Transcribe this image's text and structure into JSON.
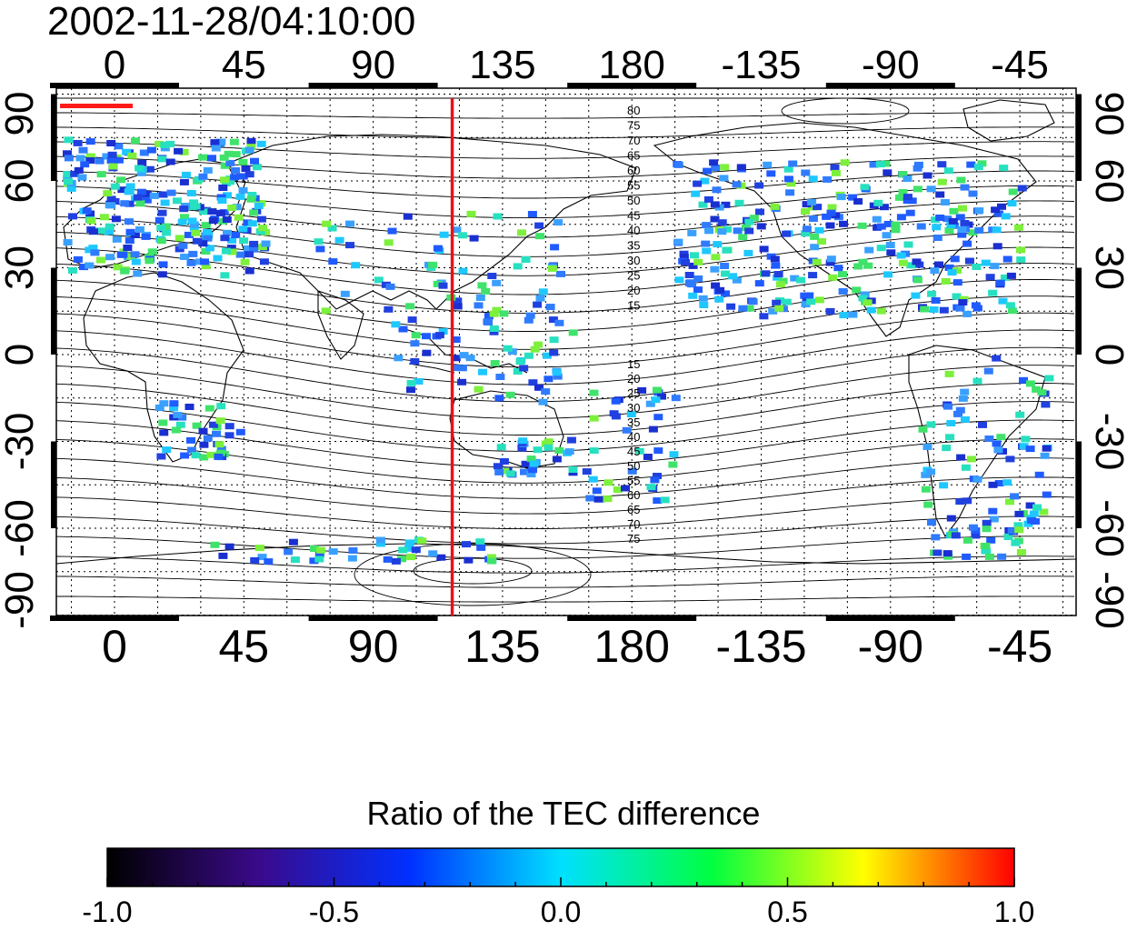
{
  "title": "2002-11-28/04:10:00",
  "map": {
    "lon_ticks": [
      "0",
      "45",
      "90",
      "135",
      "180",
      "-135",
      "-90",
      "-45"
    ],
    "lat_ticks": [
      "90",
      "60",
      "30",
      "0",
      "-30",
      "-60",
      "-90"
    ],
    "marker_longitude": 117.5,
    "marker_color": "#e3131b",
    "contour_labels_north": [
      "80",
      "75",
      "70",
      "65",
      "60",
      "55",
      "50",
      "45",
      "40",
      "35",
      "30",
      "25",
      "20",
      "15"
    ],
    "contour_labels_south": [
      "15",
      "20",
      "25",
      "30",
      "35",
      "40",
      "45",
      "50",
      "55",
      "60",
      "65",
      "70",
      "75"
    ]
  },
  "colorbar": {
    "title": "Ratio of the TEC difference",
    "ticks": [
      "-1.0",
      "-0.5",
      "0.0",
      "0.5",
      "1.0"
    ],
    "colors": [
      "#000000",
      "#3a0a8a",
      "#0030ff",
      "#00e0ff",
      "#00ff40",
      "#ffff00",
      "#ff0000"
    ]
  }
}
